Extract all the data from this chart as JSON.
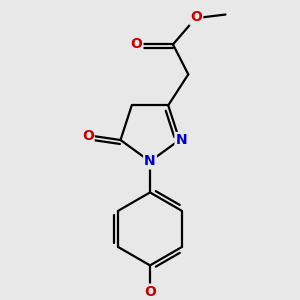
{
  "background_color": "#e8e8e8",
  "bond_color": "#000000",
  "nitrogen_color": "#0000cc",
  "oxygen_color": "#cc0000",
  "bond_width": 1.6,
  "figsize": [
    3.0,
    3.0
  ],
  "dpi": 100,
  "xlim": [
    -2.5,
    2.5
  ],
  "ylim": [
    -4.2,
    3.5
  ]
}
